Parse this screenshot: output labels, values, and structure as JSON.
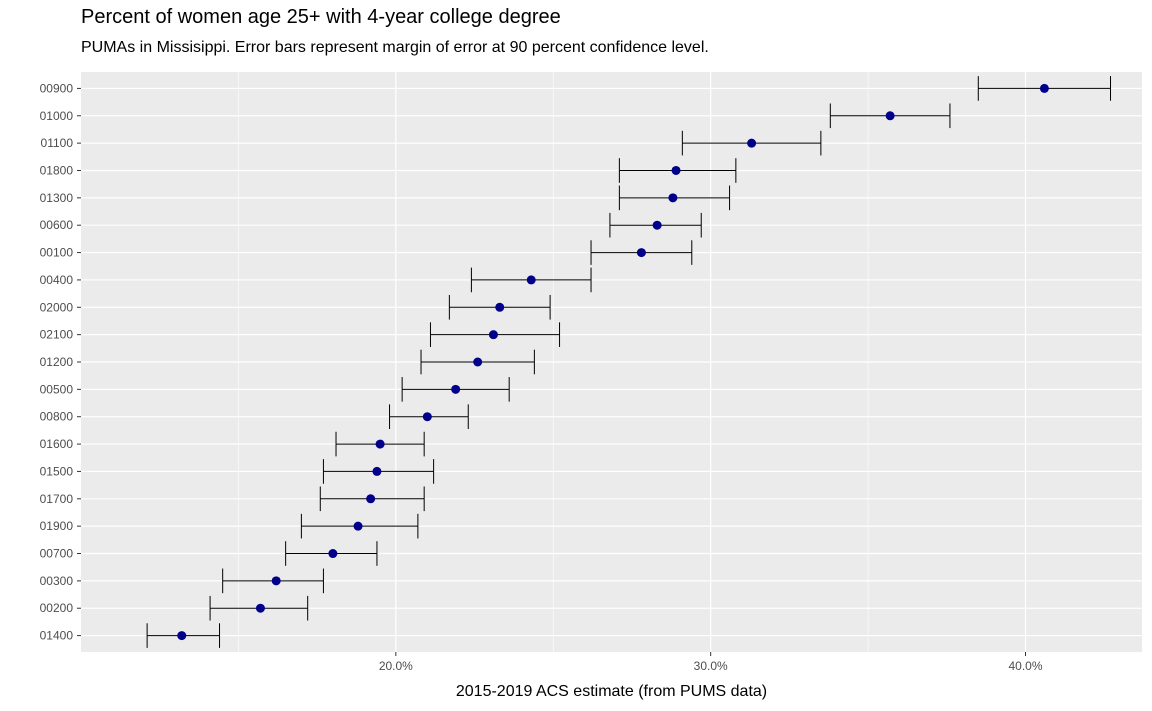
{
  "chart_data": {
    "type": "scatter",
    "title": "Percent of women age 25+ with 4-year college degree",
    "subtitle": "PUMAs in Missisippi.  Error bars represent margin of error at 90 percent confidence level.",
    "xlabel": "2015-2019 ACS estimate (from PUMS data)",
    "ylabel": "",
    "xlim": [
      0.1,
      0.437
    ],
    "xticks": [
      {
        "value": 0.2,
        "label": "20.0%"
      },
      {
        "value": 0.3,
        "label": "30.0%"
      },
      {
        "value": 0.4,
        "label": "40.0%"
      }
    ],
    "grid": true,
    "point_color": "#00008B",
    "errorbar_color": "#000000",
    "panel_background": "#EBEBEB",
    "categories": [
      "00900",
      "01000",
      "01100",
      "01800",
      "01300",
      "00600",
      "00100",
      "00400",
      "02000",
      "02100",
      "01200",
      "00500",
      "00800",
      "01600",
      "01500",
      "01700",
      "01900",
      "00700",
      "00300",
      "00200",
      "01400"
    ],
    "series": [
      {
        "estimate": [
          0.406,
          0.357,
          0.313,
          0.289,
          0.288,
          0.283,
          0.278,
          0.243,
          0.233,
          0.231,
          0.226,
          0.219,
          0.21,
          0.195,
          0.194,
          0.192,
          0.188,
          0.18,
          0.162,
          0.157,
          0.132
        ],
        "lower": [
          0.385,
          0.338,
          0.291,
          0.271,
          0.271,
          0.268,
          0.262,
          0.224,
          0.217,
          0.211,
          0.208,
          0.202,
          0.198,
          0.181,
          0.177,
          0.176,
          0.17,
          0.165,
          0.145,
          0.141,
          0.121
        ],
        "upper": [
          0.427,
          0.376,
          0.335,
          0.308,
          0.306,
          0.297,
          0.294,
          0.262,
          0.249,
          0.252,
          0.244,
          0.236,
          0.223,
          0.209,
          0.212,
          0.209,
          0.207,
          0.194,
          0.177,
          0.172,
          0.144
        ]
      }
    ]
  }
}
